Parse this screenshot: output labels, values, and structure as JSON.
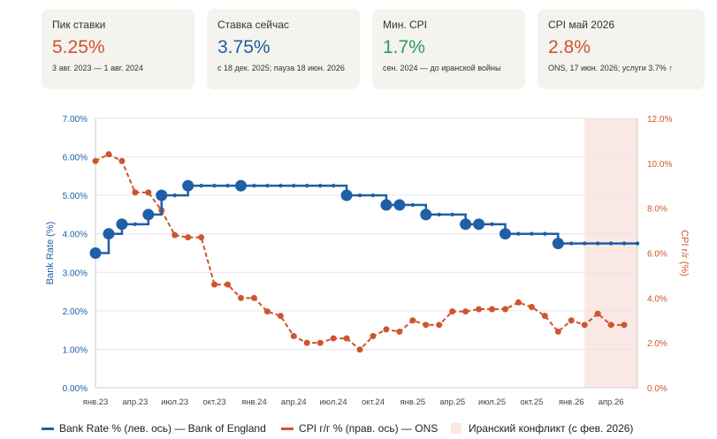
{
  "cards": [
    {
      "label": "Пик ставки",
      "value": "5.25%",
      "color": "#d0542c",
      "sub": "3 авг. 2023 — 1 авг. 2024"
    },
    {
      "label": "Ставка сейчас",
      "value": "3.75%",
      "color": "#1f5fa6",
      "sub": "с 18 дек. 2025; пауза 18 июн. 2026"
    },
    {
      "label": "Мин. CPI",
      "value": "1.7%",
      "color": "#2e9b5f",
      "sub": "сен. 2024 — до иранской войны"
    },
    {
      "label": "CPI май 2026",
      "value": "2.8%",
      "color": "#d0542c",
      "sub": "ONS, 17 июн. 2026; услуги 3.7% ↑"
    }
  ],
  "chart_data": {
    "type": "line",
    "x_tick_labels": [
      "янв.23",
      "апр.23",
      "июл.23",
      "окт.23",
      "янв.24",
      "апр.24",
      "июл.24",
      "окт.24",
      "янв.25",
      "апр.25",
      "июл.25",
      "окт.25",
      "янв.26",
      "апр.26"
    ],
    "left_axis": {
      "label": "Bank Rate (%)",
      "ylim": [
        0,
        7
      ],
      "ticks": [
        "0.00%",
        "1.00%",
        "2.00%",
        "3.00%",
        "4.00%",
        "5.00%",
        "6.00%",
        "7.00%"
      ],
      "color": "#1f5fa6"
    },
    "right_axis": {
      "label": "CPI г/г (%)",
      "ylim": [
        0,
        12
      ],
      "ticks": [
        "0.0%",
        "2.0%",
        "4.0%",
        "6.0%",
        "8.0%",
        "10.0%",
        "12.0%"
      ],
      "color": "#d0542c"
    },
    "grid": true,
    "series": [
      {
        "name": "Bank Rate % (лев. ось) — Bank of England",
        "axis": "left",
        "style": "step",
        "color": "#1f5fa6",
        "x": [
          "2023-01",
          "2023-02",
          "2023-03",
          "2023-04",
          "2023-05",
          "2023-06",
          "2023-07",
          "2023-08",
          "2023-09",
          "2023-10",
          "2023-11",
          "2023-12",
          "2024-01",
          "2024-02",
          "2024-03",
          "2024-04",
          "2024-05",
          "2024-06",
          "2024-07",
          "2024-08",
          "2024-09",
          "2024-10",
          "2024-11",
          "2024-12",
          "2025-01",
          "2025-02",
          "2025-03",
          "2025-04",
          "2025-05",
          "2025-06",
          "2025-07",
          "2025-08",
          "2025-09",
          "2025-10",
          "2025-11",
          "2025-12",
          "2026-01",
          "2026-02",
          "2026-03",
          "2026-04",
          "2026-05",
          "2026-06"
        ],
        "values": [
          3.5,
          4.0,
          4.25,
          4.25,
          4.5,
          5.0,
          5.0,
          5.25,
          5.25,
          5.25,
          5.25,
          5.25,
          5.25,
          5.25,
          5.25,
          5.25,
          5.25,
          5.25,
          5.25,
          5.0,
          5.0,
          5.0,
          4.75,
          4.75,
          4.75,
          4.5,
          4.5,
          4.5,
          4.25,
          4.25,
          4.25,
          4.0,
          4.0,
          4.0,
          4.0,
          3.75,
          3.75,
          3.75,
          3.75,
          3.75,
          3.75,
          3.75
        ],
        "decision_months": [
          "2023-01",
          "2023-02",
          "2023-03",
          "2023-05",
          "2023-06",
          "2023-08",
          "2023-12",
          "2024-08",
          "2024-11",
          "2024-12",
          "2025-02",
          "2025-05",
          "2025-06",
          "2025-08",
          "2025-12"
        ]
      },
      {
        "name": "CPI г/г % (прав. ось) — ONS",
        "axis": "right",
        "style": "dashed",
        "color": "#d0542c",
        "x": [
          "2023-01",
          "2023-02",
          "2023-03",
          "2023-04",
          "2023-05",
          "2023-06",
          "2023-07",
          "2023-08",
          "2023-09",
          "2023-10",
          "2023-11",
          "2023-12",
          "2024-01",
          "2024-02",
          "2024-03",
          "2024-04",
          "2024-05",
          "2024-06",
          "2024-07",
          "2024-08",
          "2024-09",
          "2024-10",
          "2024-11",
          "2024-12",
          "2025-01",
          "2025-02",
          "2025-03",
          "2025-04",
          "2025-05",
          "2025-06",
          "2025-07",
          "2025-08",
          "2025-09",
          "2025-10",
          "2025-11",
          "2025-12",
          "2026-01",
          "2026-02",
          "2026-03",
          "2026-04",
          "2026-05"
        ],
        "values": [
          10.1,
          10.4,
          10.1,
          8.7,
          8.7,
          7.9,
          6.8,
          6.7,
          6.7,
          4.6,
          4.6,
          4.0,
          4.0,
          3.4,
          3.2,
          2.3,
          2.0,
          2.0,
          2.2,
          2.2,
          1.7,
          2.3,
          2.6,
          2.5,
          3.0,
          2.8,
          2.8,
          3.4,
          3.4,
          3.5,
          3.5,
          3.5,
          3.8,
          3.6,
          3.2,
          2.5,
          3.0,
          2.8,
          3.3,
          2.8,
          2.8
        ]
      }
    ],
    "shaded_region": {
      "label": "Иранский конфликт (с фев. 2026)",
      "from": "2026-02",
      "to": "2026-06",
      "color": "#f9e8e4"
    }
  }
}
